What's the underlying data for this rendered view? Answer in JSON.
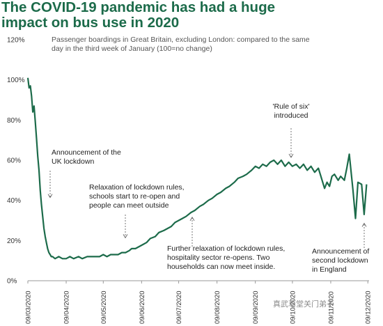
{
  "title_line1": "The COVID-19 pandemic has had a huge",
  "title_line2": "impact on bus use in 2020",
  "subtitle": "Passenger boardings in Great Britain, excluding London: compared to the same day in the third week of January (100=no change)",
  "watermark": "真武草堂关门弟子",
  "colors": {
    "line": "#1c6b4a",
    "title": "#1c6b4a",
    "axis": "#999999",
    "annotation_arrow": "#666666"
  },
  "chart_data": {
    "type": "line",
    "title": "The COVID-19 pandemic has had a huge impact on bus use in 2020",
    "subtitle": "Passenger boardings in Great Britain, excluding London: compared to the same day in the third week of January (100=no change)",
    "xlabel": "",
    "ylabel": "",
    "ylim": [
      0,
      120
    ],
    "y_ticks": [
      "0%",
      "20%",
      "40%",
      "60%",
      "80%",
      "100%",
      "120%"
    ],
    "x_ticks": [
      "09/03/2020",
      "09/04/2020",
      "09/05/2020",
      "09/06/2020",
      "09/07/2020",
      "09/08/2020",
      "09/09/2020",
      "09/10/2020",
      "09/11/2020",
      "09/12/2020"
    ],
    "x_tick_dates": [
      "2020-03-09",
      "2020-04-09",
      "2020-05-09",
      "2020-06-09",
      "2020-07-09",
      "2020-08-09",
      "2020-09-09",
      "2020-10-09",
      "2020-11-09",
      "2020-12-09"
    ],
    "x_range": [
      "2020-03-09",
      "2020-12-10"
    ],
    "grid": false,
    "series": [
      {
        "x": [
          "2020-03-09",
          "2020-03-10",
          "2020-03-11",
          "2020-03-12",
          "2020-03-13",
          "2020-03-14",
          "2020-03-15",
          "2020-03-16",
          "2020-03-17",
          "2020-03-18",
          "2020-03-19",
          "2020-03-20",
          "2020-03-21",
          "2020-03-22",
          "2020-03-23",
          "2020-03-24",
          "2020-03-25",
          "2020-03-26",
          "2020-03-27",
          "2020-03-28",
          "2020-03-29",
          "2020-03-31",
          "2020-04-03",
          "2020-04-06",
          "2020-04-09",
          "2020-04-12",
          "2020-04-15",
          "2020-04-19",
          "2020-04-22",
          "2020-04-26",
          "2020-04-29",
          "2020-05-03",
          "2020-05-06",
          "2020-05-09",
          "2020-05-12",
          "2020-05-15",
          "2020-05-18",
          "2020-05-21",
          "2020-05-24",
          "2020-05-27",
          "2020-05-30",
          "2020-06-01",
          "2020-06-04",
          "2020-06-07",
          "2020-06-10",
          "2020-06-13",
          "2020-06-16",
          "2020-06-20",
          "2020-06-23",
          "2020-06-27",
          "2020-06-30",
          "2020-07-03",
          "2020-07-06",
          "2020-07-09",
          "2020-07-12",
          "2020-07-15",
          "2020-07-19",
          "2020-07-22",
          "2020-07-26",
          "2020-07-29",
          "2020-08-02",
          "2020-08-05",
          "2020-08-09",
          "2020-08-12",
          "2020-08-16",
          "2020-08-19",
          "2020-08-23",
          "2020-08-26",
          "2020-08-30",
          "2020-09-02",
          "2020-09-06",
          "2020-09-09",
          "2020-09-12",
          "2020-09-15",
          "2020-09-18",
          "2020-09-21",
          "2020-09-24",
          "2020-09-27",
          "2020-09-30",
          "2020-10-03",
          "2020-10-06",
          "2020-10-09",
          "2020-10-12",
          "2020-10-15",
          "2020-10-18",
          "2020-10-21",
          "2020-10-24",
          "2020-10-27",
          "2020-10-30",
          "2020-11-01",
          "2020-11-03",
          "2020-11-04",
          "2020-11-06",
          "2020-11-08",
          "2020-11-10",
          "2020-11-12",
          "2020-11-15",
          "2020-11-17",
          "2020-11-20",
          "2020-11-22",
          "2020-11-24",
          "2020-11-27",
          "2020-11-29",
          "2020-12-01",
          "2020-12-04",
          "2020-12-06",
          "2020-12-08"
        ],
        "values": [
          101,
          96,
          97,
          92,
          84,
          87,
          79,
          71,
          62,
          55,
          45,
          38,
          32,
          26,
          22,
          19,
          16,
          14,
          13,
          12,
          12,
          11,
          12,
          11,
          11,
          12,
          11,
          12,
          11,
          12,
          12,
          12,
          12,
          13,
          12,
          13,
          13,
          13,
          14,
          14,
          15,
          16,
          16,
          17,
          18,
          19,
          21,
          22,
          24,
          25,
          26,
          27,
          29,
          30,
          31,
          32,
          34,
          35,
          37,
          38,
          40,
          41,
          43,
          44,
          46,
          47,
          49,
          51,
          52,
          53,
          55,
          57,
          56,
          58,
          57,
          59,
          60,
          58,
          60,
          57,
          59,
          57,
          58,
          56,
          58,
          55,
          57,
          54,
          56,
          52,
          48,
          46,
          49,
          47,
          52,
          53,
          50,
          52,
          50,
          56,
          63,
          45,
          31,
          49,
          48,
          33,
          48
        ]
      }
    ],
    "annotations": [
      {
        "text": [
          "Announcement of the",
          "UK lockdown"
        ],
        "date": "2020-03-24",
        "value": 40
      },
      {
        "text": [
          "Relaxation of lockdown rules,",
          "schools start to re-open and",
          "people can meet outside"
        ],
        "date": "2020-06-01",
        "value": 20
      },
      {
        "text": [
          "Further relaxation of lockdown rules,",
          "hospitality sector re-opens. Two",
          "households can now meet inside."
        ],
        "date": "2020-07-04",
        "value": 33
      },
      {
        "text": [
          "'Rule of six'",
          "introduced"
        ],
        "date": "2020-09-14",
        "value": 60
      },
      {
        "text": [
          "Announcement of",
          "second lockdown",
          "in England"
        ],
        "date": "2020-11-30",
        "value": 30
      }
    ]
  }
}
